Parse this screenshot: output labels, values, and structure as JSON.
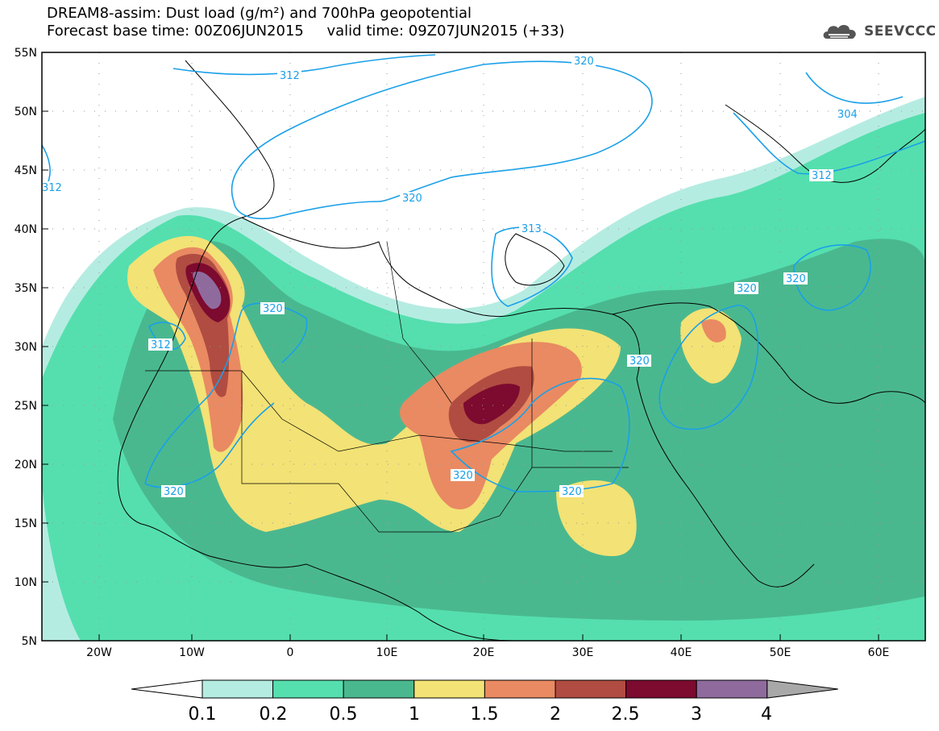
{
  "title": {
    "line1": "DREAM8-assim: Dust load (g/m²) and 700hPa geopotential",
    "line2_left": "Forecast base time: 00Z06JUN2015",
    "line2_right": "valid time: 09Z07JUN2015 (+33)"
  },
  "logo": {
    "text": "SEEVCCC",
    "icon": "cloud-logo-icon"
  },
  "map": {
    "lat_ticks": [
      "55N",
      "50N",
      "45N",
      "40N",
      "35N",
      "30N",
      "25N",
      "20N",
      "15N",
      "10N",
      "5N"
    ],
    "lon_ticks": [
      "20W",
      "10W",
      "0",
      "10E",
      "20E",
      "30E",
      "40E",
      "50E",
      "60E"
    ],
    "lat_range": [
      5,
      55
    ],
    "lon_range": [
      -25,
      65
    ],
    "geopotential_labels": [
      "312",
      "320",
      "304",
      "312",
      "312",
      "320",
      "320",
      "313",
      "320",
      "320",
      "312",
      "320",
      "320",
      "320",
      "320"
    ]
  },
  "colorbar": {
    "labels": [
      "0.1",
      "0.2",
      "0.5",
      "1",
      "1.5",
      "2",
      "2.5",
      "3",
      "4"
    ],
    "colors": [
      "#ffffff",
      "#b5ece2",
      "#55dfae",
      "#4ab88f",
      "#f3e275",
      "#e98a62",
      "#b04c41",
      "#7d0a2f",
      "#8f6b9d",
      "#a8a8a8"
    ]
  },
  "colors": {
    "contour": "#1aa0e8",
    "level_01": "#b5ece2",
    "level_02": "#55dfae",
    "level_05": "#4ab88f",
    "level_1": "#f3e275",
    "level_15": "#e98a62",
    "level_2": "#b04c41",
    "level_25": "#7d0a2f",
    "level_3": "#8f6b9d"
  }
}
